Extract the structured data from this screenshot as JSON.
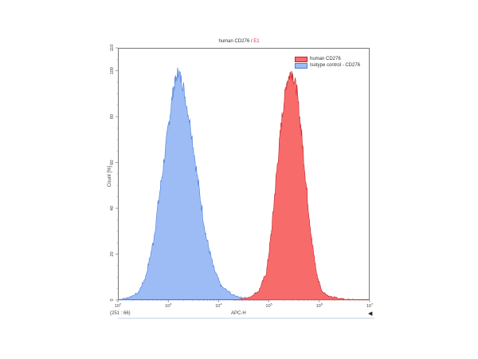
{
  "title": {
    "sample": "human CD276",
    "separator": " / ",
    "gate": "E1"
  },
  "status": {
    "coords": "(251 : 66)"
  },
  "chart_data": {
    "type": "area",
    "title": "human CD276 / E1",
    "xlabel": "APC-H",
    "ylabel": "Count [%]",
    "xscale": "log",
    "xlim": [
      100,
      10000000
    ],
    "ylim": [
      0,
      110
    ],
    "x_ticks": [
      "10^2",
      "10^3",
      "10^4",
      "10^5",
      "10^6",
      "10^7"
    ],
    "y_ticks": [
      0,
      20,
      40,
      60,
      80,
      100,
      110
    ],
    "legend_position": "top-right",
    "series": [
      {
        "name": "human CD276",
        "color": "#f86b6b",
        "edge": "#c0282e",
        "peak_log10_x": 5.45,
        "peak_y": 100,
        "points_log10x_y": [
          [
            4.3,
            0
          ],
          [
            4.6,
            1
          ],
          [
            4.8,
            4
          ],
          [
            4.95,
            12
          ],
          [
            5.05,
            30
          ],
          [
            5.15,
            55
          ],
          [
            5.25,
            78
          ],
          [
            5.35,
            95
          ],
          [
            5.45,
            100
          ],
          [
            5.55,
            92
          ],
          [
            5.65,
            72
          ],
          [
            5.75,
            48
          ],
          [
            5.85,
            26
          ],
          [
            5.95,
            11
          ],
          [
            6.05,
            4
          ],
          [
            6.2,
            1.5
          ],
          [
            6.5,
            0.3
          ],
          [
            7,
            0
          ]
        ]
      },
      {
        "name": "Isotype control - CD276",
        "color": "#9dbcf5",
        "edge": "#4a7fd8",
        "peak_log10_x": 3.2,
        "peak_y": 100,
        "points_log10x_y": [
          [
            2.0,
            0
          ],
          [
            2.2,
            1
          ],
          [
            2.4,
            3
          ],
          [
            2.55,
            10
          ],
          [
            2.7,
            25
          ],
          [
            2.85,
            50
          ],
          [
            3.0,
            75
          ],
          [
            3.1,
            92
          ],
          [
            3.2,
            100
          ],
          [
            3.3,
            93
          ],
          [
            3.45,
            75
          ],
          [
            3.6,
            50
          ],
          [
            3.75,
            28
          ],
          [
            3.9,
            14
          ],
          [
            4.05,
            6
          ],
          [
            4.3,
            2
          ],
          [
            4.6,
            0.5
          ],
          [
            5,
            0
          ]
        ]
      }
    ]
  },
  "legend": [
    {
      "label": "human CD276",
      "color": "#f86b6b",
      "edge": "#c0282e"
    },
    {
      "label": "Isotype control - CD276",
      "color": "#9dbcf5",
      "edge": "#4a7fd8"
    }
  ]
}
